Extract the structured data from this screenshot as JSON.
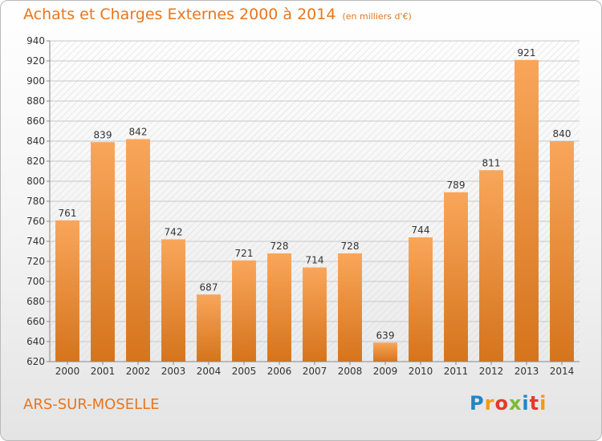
{
  "title": "Achats et Charges Externes 2000 à 2014",
  "unit": "(en milliers d'€)",
  "city": "ARS-SUR-MOSELLE",
  "brand": "Proxiti",
  "colors": {
    "accent": "#e8761c",
    "bar_top": "#f9a65a",
    "bar_bottom": "#d5741c"
  },
  "chart_data": {
    "type": "bar",
    "title": "Achats et Charges Externes 2000 à 2014",
    "subtitle": "(en milliers d'€)",
    "categories": [
      "2000",
      "2001",
      "2002",
      "2003",
      "2004",
      "2005",
      "2006",
      "2007",
      "2008",
      "2009",
      "2010",
      "2011",
      "2012",
      "2013",
      "2014"
    ],
    "values": [
      761,
      839,
      842,
      742,
      687,
      721,
      728,
      714,
      728,
      639,
      744,
      789,
      811,
      921,
      840
    ],
    "ylim": [
      620,
      940
    ],
    "yticks": [
      620,
      640,
      660,
      680,
      700,
      720,
      740,
      760,
      780,
      800,
      820,
      840,
      860,
      880,
      900,
      920,
      940
    ],
    "grid": true,
    "xlabel": "",
    "ylabel": ""
  }
}
